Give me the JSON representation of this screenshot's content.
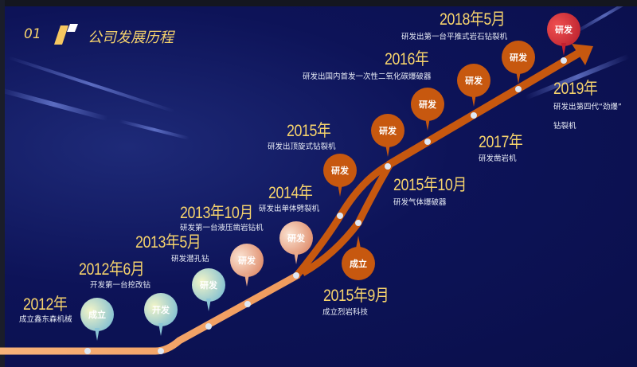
{
  "header": {
    "number": "01",
    "title": "公司发展历程"
  },
  "colors": {
    "background": "#0b1050",
    "accent": "#f6d36c",
    "track_light": "#f2a468",
    "track_dark": "#c7580f",
    "final": "#c22030"
  },
  "milestones": [
    {
      "year": "2012年",
      "desc": "成立鑫东森机械",
      "pin": "成立"
    },
    {
      "year": "2012年6月",
      "desc": "开发第一台挖改钻",
      "pin": "开发"
    },
    {
      "year": "2013年5月",
      "desc": "研发潜孔钻",
      "pin": "研发"
    },
    {
      "year": "2013年10月",
      "desc": "研发第一台液压凿岩钻机",
      "pin": "研发"
    },
    {
      "year": "2014年",
      "desc": "研发出单体劈裂机",
      "pin": "研发"
    },
    {
      "year": "2015年",
      "desc": "研发出顶旋式钻裂机",
      "pin": "研发"
    },
    {
      "year": "2015年9月",
      "desc": "成立烈岩科技",
      "pin": "成立"
    },
    {
      "year": "2015年10月",
      "desc": "研发气体爆破器",
      "pin": "研发"
    },
    {
      "year": "2016年",
      "desc": "研发出国内首发一次性二氧化碳爆破器",
      "pin": "研发"
    },
    {
      "year": "2017年",
      "desc": "研发凿岩机",
      "pin": "研发"
    },
    {
      "year": "2018年5月",
      "desc": "研发出第一台平推式岩石钻裂机",
      "pin": "研发"
    },
    {
      "year": "2019年",
      "desc": "研发出第四代“劲爆”",
      "desc2": "钻裂机",
      "pin": "研发"
    }
  ]
}
